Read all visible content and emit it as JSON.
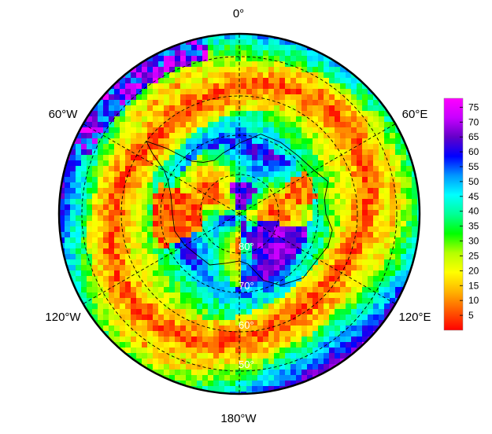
{
  "map": {
    "projection": "south-polar-stereographic",
    "longitude_labels": [
      {
        "id": "0",
        "text": "0°"
      },
      {
        "id": "60e",
        "text": "60°E"
      },
      {
        "id": "120e",
        "text": "120°E"
      },
      {
        "id": "180w",
        "text": "180°W"
      },
      {
        "id": "120w",
        "text": "120°W"
      },
      {
        "id": "60w",
        "text": "60°W"
      }
    ],
    "latitude_labels": [
      {
        "id": "80",
        "text": "80°",
        "lat": 80
      },
      {
        "id": "70",
        "text": "70°",
        "lat": 70
      },
      {
        "id": "60",
        "text": "60°",
        "lat": 60
      },
      {
        "id": "50",
        "text": "50°",
        "lat": 50
      }
    ],
    "colors": {
      "scale": [
        "#ff0000",
        "#ff5a00",
        "#ffb400",
        "#ffff00",
        "#b4ff00",
        "#00ff00",
        "#00ff96",
        "#00ffff",
        "#0096ff",
        "#0000ff",
        "#6400c8",
        "#c800ff",
        "#ff00ff"
      ],
      "graticule": "#000000",
      "lat_label": "#ffffff"
    }
  },
  "colorbar": {
    "min": 0,
    "max": 78,
    "ticks": [
      "5",
      "10",
      "15",
      "20",
      "25",
      "30",
      "35",
      "40",
      "45",
      "50",
      "55",
      "60",
      "65",
      "70",
      "75"
    ]
  }
}
